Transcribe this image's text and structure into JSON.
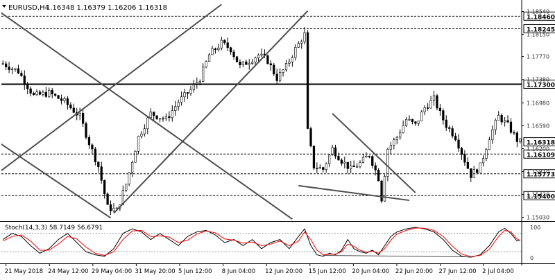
{
  "chart_data": [
    {
      "type": "candlestick",
      "symbol_label": "EURUSD,H4",
      "ohlc_label": "1.16348 1.16379 1.16206 1.16318",
      "y_tick_labels": [
        "1.18540",
        "1.18150",
        "1.17770",
        "1.17380",
        "1.16980",
        "1.16590",
        "1.16200",
        "1.15810",
        "1.15420",
        "1.15030"
      ],
      "x_tick_labels": [
        "21 May 2018",
        "24 May 12:00",
        "29 May 04:00",
        "31 May 20:00",
        "5 Jun 12:00",
        "8 Jun 04:00",
        "12 Jun 20:00",
        "15 Jun 12:00",
        "20 Jun 04:00",
        "22 Jun 20:00",
        "27 Jun 12:00",
        "2 Jul 04:00"
      ],
      "horizontal_levels": [
        {
          "value": 1.1846,
          "label": "1.18460",
          "style": "dashed"
        },
        {
          "value": 1.18245,
          "label": "1.18245",
          "style": "dashed"
        },
        {
          "value": 1.173,
          "label": "1.17300",
          "style": "solid"
        },
        {
          "value": 1.16109,
          "label": "1.16109",
          "style": "dashed"
        },
        {
          "value": 1.15773,
          "label": "1.15773",
          "style": "dashed"
        },
        {
          "value": 1.154,
          "label": "1.15400",
          "style": "dashed"
        }
      ],
      "current_price": {
        "value": 1.16318,
        "label": "1.16318"
      },
      "close_path": [
        [
          0,
          1.1765
        ],
        [
          5,
          1.1752
        ],
        [
          10,
          1.171
        ],
        [
          15,
          1.1715
        ],
        [
          20,
          1.17
        ],
        [
          25,
          1.1675
        ],
        [
          28,
          1.163
        ],
        [
          31,
          1.159
        ],
        [
          34,
          1.152
        ],
        [
          37,
          1.1515
        ],
        [
          40,
          1.156
        ],
        [
          44,
          1.164
        ],
        [
          48,
          1.168
        ],
        [
          53,
          1.167
        ],
        [
          57,
          1.17
        ],
        [
          61,
          1.172
        ],
        [
          64,
          1.174
        ],
        [
          67,
          1.178
        ],
        [
          71,
          1.18
        ],
        [
          74,
          1.179
        ],
        [
          77,
          1.176
        ],
        [
          80,
          1.177
        ],
        [
          83,
          1.178
        ],
        [
          86,
          1.177
        ],
        [
          89,
          1.174
        ],
        [
          92,
          1.176
        ],
        [
          95,
          1.179
        ],
        [
          98,
          1.1815
        ],
        [
          99,
          1.165
        ],
        [
          101,
          1.159
        ],
        [
          104,
          1.1585
        ],
        [
          107,
          1.162
        ],
        [
          110,
          1.16
        ],
        [
          113,
          1.1585
        ],
        [
          116,
          1.1595
        ],
        [
          119,
          1.161
        ],
        [
          122,
          1.157
        ],
        [
          123,
          1.1535
        ],
        [
          125,
          1.162
        ],
        [
          128,
          1.164
        ],
        [
          131,
          1.167
        ],
        [
          134,
          1.166
        ],
        [
          137,
          1.169
        ],
        [
          140,
          1.1705
        ],
        [
          142,
          1.168
        ],
        [
          144,
          1.166
        ],
        [
          147,
          1.164
        ],
        [
          150,
          1.16
        ],
        [
          152,
          1.1575
        ],
        [
          155,
          1.159
        ],
        [
          158,
          1.164
        ],
        [
          161,
          1.1675
        ],
        [
          164,
          1.166
        ],
        [
          167,
          1.1635
        ],
        [
          168,
          1.1632
        ]
      ],
      "annotation_lines": [
        {
          "name": "channel-lower",
          "points": [
            [
              36,
              1.151
            ],
            [
              99,
              1.1855
            ]
          ]
        },
        {
          "name": "channel-upper",
          "points": [
            [
              -5,
              1.1565
            ],
            [
              71,
              1.1866
            ]
          ]
        },
        {
          "name": "diagonal-upper",
          "points": [
            [
              -2,
              1.1857
            ],
            [
              94,
              1.15
            ]
          ]
        },
        {
          "name": "diagonal-lower",
          "points": [
            [
              -2,
              1.1633
            ],
            [
              35,
              1.1502
            ]
          ]
        },
        {
          "name": "wedge-upper",
          "points": [
            [
              107,
              1.168
            ],
            [
              134,
              1.1545
            ]
          ]
        },
        {
          "name": "wedge-lower",
          "points": [
            [
              96,
              1.1557
            ],
            [
              132,
              1.1532
            ]
          ]
        }
      ]
    },
    {
      "type": "line",
      "indicator_label": "Stoch(14,3,3) 58.7149 56.6791",
      "y_tick_labels": [
        "100",
        "0"
      ],
      "series": [
        {
          "name": "%K",
          "values": [
            [
              0,
              60
            ],
            [
              3,
              80
            ],
            [
              6,
              70
            ],
            [
              9,
              40
            ],
            [
              12,
              15
            ],
            [
              15,
              30
            ],
            [
              18,
              60
            ],
            [
              21,
              80
            ],
            [
              24,
              50
            ],
            [
              27,
              20
            ],
            [
              30,
              10
            ],
            [
              33,
              5
            ],
            [
              36,
              30
            ],
            [
              39,
              80
            ],
            [
              42,
              95
            ],
            [
              45,
              85
            ],
            [
              48,
              60
            ],
            [
              51,
              80
            ],
            [
              54,
              60
            ],
            [
              57,
              40
            ],
            [
              60,
              70
            ],
            [
              63,
              85
            ],
            [
              66,
              90
            ],
            [
              69,
              75
            ],
            [
              72,
              50
            ],
            [
              75,
              60
            ],
            [
              78,
              40
            ],
            [
              81,
              60
            ],
            [
              84,
              30
            ],
            [
              87,
              50
            ],
            [
              90,
              60
            ],
            [
              93,
              30
            ],
            [
              96,
              70
            ],
            [
              98,
              95
            ],
            [
              100,
              40
            ],
            [
              102,
              10
            ],
            [
              104,
              5
            ],
            [
              106,
              15
            ],
            [
              108,
              10
            ],
            [
              110,
              25
            ],
            [
              112,
              60
            ],
            [
              114,
              30
            ],
            [
              116,
              20
            ],
            [
              118,
              15
            ],
            [
              120,
              25
            ],
            [
              122,
              10
            ],
            [
              124,
              40
            ],
            [
              126,
              70
            ],
            [
              128,
              85
            ],
            [
              131,
              95
            ],
            [
              134,
              100
            ],
            [
              137,
              95
            ],
            [
              140,
              85
            ],
            [
              143,
              60
            ],
            [
              146,
              25
            ],
            [
              149,
              5
            ],
            [
              152,
              2
            ],
            [
              155,
              10
            ],
            [
              158,
              40
            ],
            [
              161,
              85
            ],
            [
              163,
              97
            ],
            [
              165,
              80
            ],
            [
              167,
              55
            ],
            [
              168,
              58.7
            ]
          ]
        },
        {
          "name": "%D",
          "values": [
            [
              0,
              55
            ],
            [
              3,
              70
            ],
            [
              6,
              75
            ],
            [
              9,
              55
            ],
            [
              12,
              25
            ],
            [
              15,
              25
            ],
            [
              18,
              45
            ],
            [
              21,
              70
            ],
            [
              24,
              62
            ],
            [
              27,
              35
            ],
            [
              30,
              15
            ],
            [
              33,
              8
            ],
            [
              36,
              20
            ],
            [
              39,
              60
            ],
            [
              42,
              88
            ],
            [
              45,
              90
            ],
            [
              48,
              70
            ],
            [
              51,
              72
            ],
            [
              54,
              68
            ],
            [
              57,
              50
            ],
            [
              60,
              58
            ],
            [
              63,
              78
            ],
            [
              66,
              88
            ],
            [
              69,
              82
            ],
            [
              72,
              62
            ],
            [
              75,
              58
            ],
            [
              78,
              48
            ],
            [
              81,
              52
            ],
            [
              84,
              40
            ],
            [
              87,
              45
            ],
            [
              90,
              55
            ],
            [
              93,
              40
            ],
            [
              96,
              55
            ],
            [
              98,
              85
            ],
            [
              100,
              60
            ],
            [
              102,
              25
            ],
            [
              104,
              10
            ],
            [
              106,
              12
            ],
            [
              108,
              12
            ],
            [
              110,
              20
            ],
            [
              112,
              45
            ],
            [
              114,
              38
            ],
            [
              116,
              25
            ],
            [
              118,
              18
            ],
            [
              120,
              22
            ],
            [
              122,
              15
            ],
            [
              124,
              30
            ],
            [
              126,
              58
            ],
            [
              128,
              78
            ],
            [
              131,
              90
            ],
            [
              134,
              98
            ],
            [
              137,
              97
            ],
            [
              140,
              90
            ],
            [
              143,
              70
            ],
            [
              146,
              38
            ],
            [
              149,
              12
            ],
            [
              152,
              4
            ],
            [
              155,
              8
            ],
            [
              158,
              28
            ],
            [
              161,
              70
            ],
            [
              163,
              90
            ],
            [
              165,
              85
            ],
            [
              167,
              62
            ],
            [
              168,
              56.7
            ]
          ]
        }
      ],
      "annotation_lines": [
        {
          "name": "stoch-divergence-line",
          "points": [
            [
              104,
              8
            ],
            [
              153,
              3
            ]
          ]
        }
      ]
    }
  ],
  "colors": {
    "background": "#ffffff",
    "candle_body": "#ffffff",
    "candle_stroke": "#000000",
    "trendline": "#4d4d4d",
    "stoch_k": "#000000",
    "stoch_d": "#ff0000",
    "label_fill": "#ffffff",
    "separator": "#000000"
  }
}
